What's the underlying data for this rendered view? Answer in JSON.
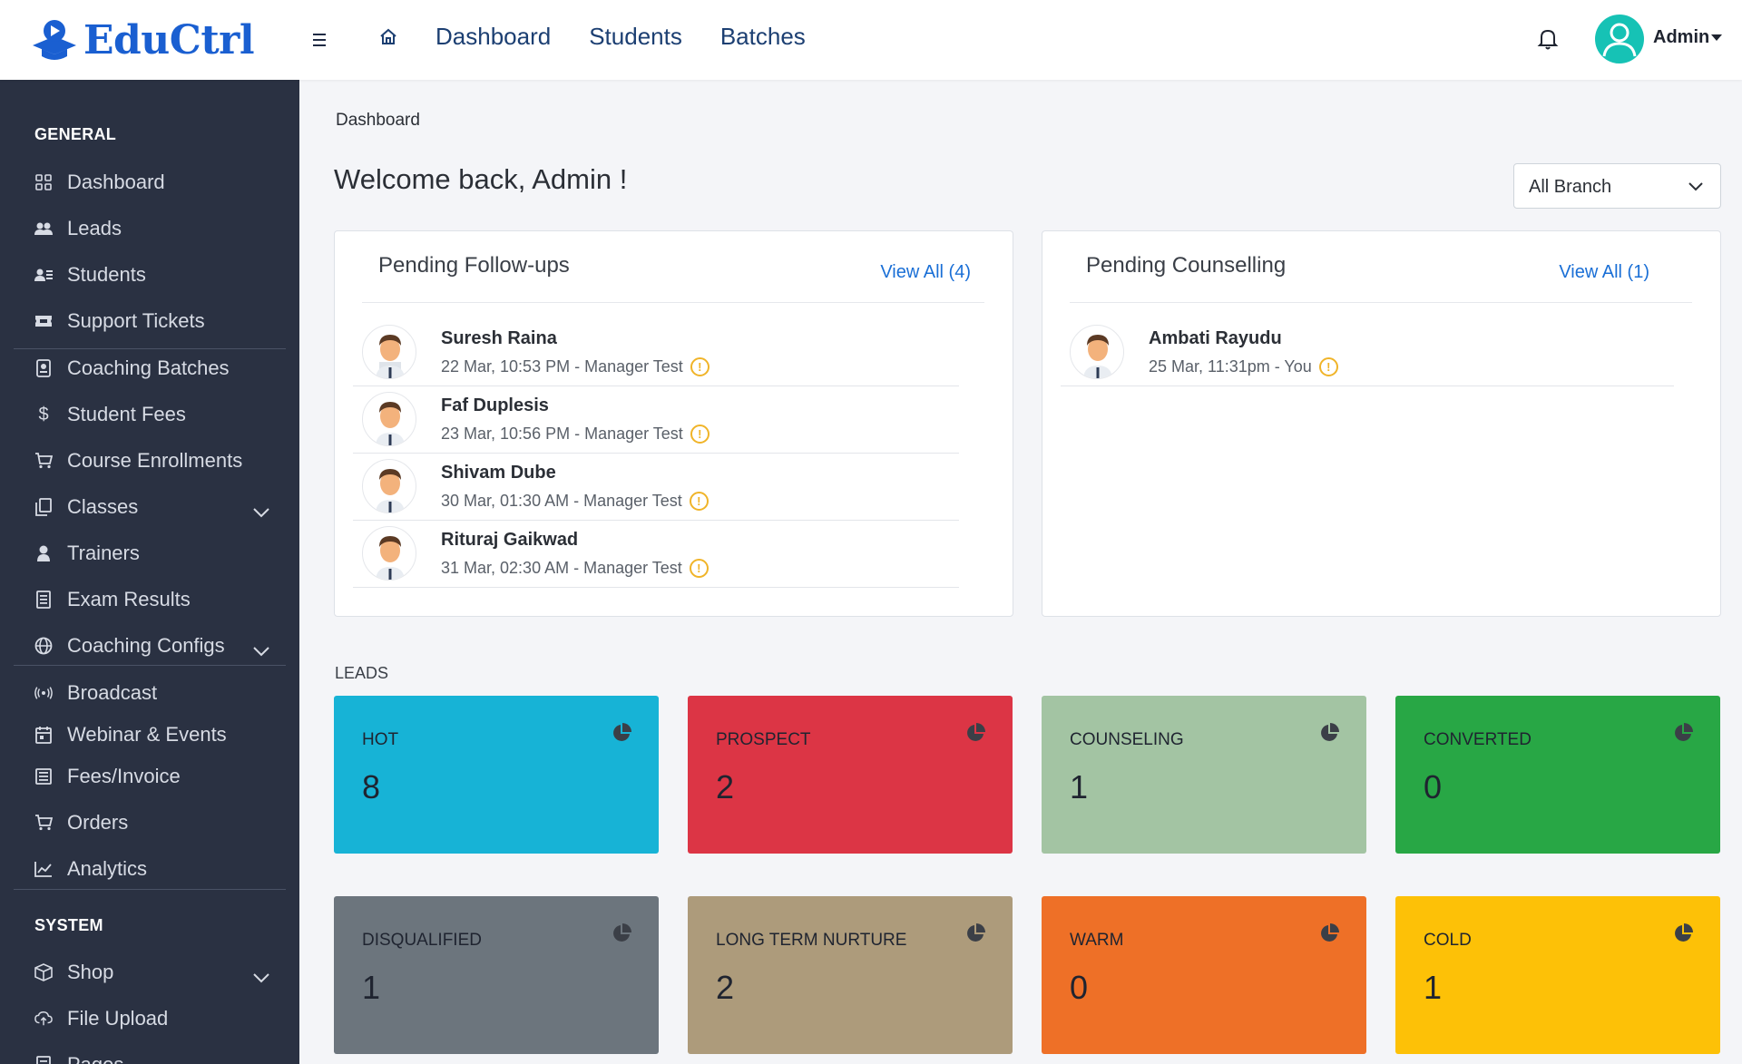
{
  "brand": {
    "name": "EduCtrl",
    "color": "#1a5fd1"
  },
  "topnav": {
    "links": [
      "Dashboard",
      "Students",
      "Batches"
    ],
    "user_label": "Admin"
  },
  "sidebar": {
    "sections": {
      "general": "GENERAL",
      "system": "SYSTEM"
    },
    "items": [
      {
        "label": "Dashboard",
        "icon": "grid-icon"
      },
      {
        "label": "Leads",
        "icon": "users-icon"
      },
      {
        "label": "Students",
        "icon": "student-list-icon"
      },
      {
        "label": "Support Tickets",
        "icon": "ticket-icon"
      },
      {
        "label": "Coaching Batches",
        "icon": "badge-icon"
      },
      {
        "label": "Student Fees",
        "icon": "dollar-icon"
      },
      {
        "label": "Course Enrollments",
        "icon": "cart-icon"
      },
      {
        "label": "Classes",
        "icon": "copy-icon"
      },
      {
        "label": "Trainers",
        "icon": "trainer-icon"
      },
      {
        "label": "Exam Results",
        "icon": "document-icon"
      },
      {
        "label": "Coaching Configs",
        "icon": "globe-icon"
      },
      {
        "label": "Broadcast",
        "icon": "broadcast-icon"
      },
      {
        "label": "Webinar & Events",
        "icon": "calendar-icon"
      },
      {
        "label": "Fees/Invoice",
        "icon": "invoice-icon"
      },
      {
        "label": "Orders",
        "icon": "cart-icon"
      },
      {
        "label": "Analytics",
        "icon": "chart-icon"
      },
      {
        "label": "Shop",
        "icon": "box-icon"
      },
      {
        "label": "File Upload",
        "icon": "cloud-upload-icon"
      },
      {
        "label": "Pages",
        "icon": "pages-icon"
      }
    ]
  },
  "main": {
    "breadcrumb": "Dashboard",
    "welcome": "Welcome back, Admin !",
    "branch_select": "All Branch",
    "followups": {
      "title": "Pending Follow-ups",
      "view_all": "View All (4)",
      "rows": [
        {
          "name": "Suresh Raina",
          "meta": "22 Mar, 10:53 PM - Manager Test"
        },
        {
          "name": "Faf Duplesis",
          "meta": "23 Mar, 10:56 PM - Manager Test"
        },
        {
          "name": "Shivam Dube",
          "meta": "30 Mar, 01:30 AM - Manager Test"
        },
        {
          "name": "Rituraj Gaikwad",
          "meta": "31 Mar, 02:30 AM - Manager Test"
        }
      ]
    },
    "counselling": {
      "title": "Pending Counselling",
      "view_all": "View All (1)",
      "rows": [
        {
          "name": "Ambati Rayudu",
          "meta": "25 Mar, 11:31pm - You"
        }
      ]
    },
    "leads_label": "LEADS",
    "leads": [
      {
        "label": "HOT",
        "value": "8",
        "color": "#17b3d6"
      },
      {
        "label": "PROSPECT",
        "value": "2",
        "color": "#dc3545"
      },
      {
        "label": "COUNSELING",
        "value": "1",
        "color": "#a3c4a3"
      },
      {
        "label": "CONVERTED",
        "value": "0",
        "color": "#28a745"
      },
      {
        "label": "DISQUALIFIED",
        "value": "1",
        "color": "#6c757d"
      },
      {
        "label": "LONG TERM NURTURE",
        "value": "2",
        "color": "#ad9b7b"
      },
      {
        "label": "WARM",
        "value": "0",
        "color": "#ee7027"
      },
      {
        "label": "COLD",
        "value": "1",
        "color": "#fdc107"
      }
    ]
  }
}
